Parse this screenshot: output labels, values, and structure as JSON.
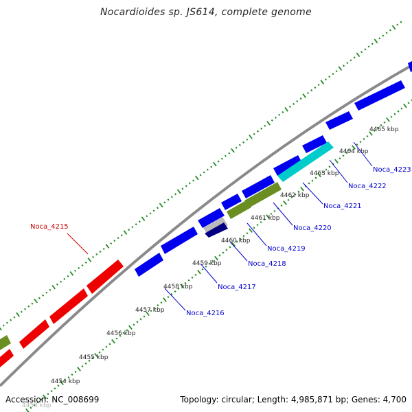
{
  "title": "Nocardioides sp. JS614, complete genome",
  "footer": {
    "accession": "Accession: NC_008699",
    "topology": "Topology: circular; Length: 4,985,871 bp; Genes: 4,700"
  },
  "colors": {
    "backbone": "#8a8a8a",
    "tick": "#228b22",
    "forward_gene": "#0000ee",
    "reverse_gene": "#ee0000",
    "olive_gene": "#6b8e23",
    "cyan_gene": "#00cccc",
    "navy_gene": "#000080",
    "gray_gene": "#bbbbbb",
    "label_forward": "#0000cc",
    "label_reverse": "#cc0000"
  },
  "scale_labels": [
    "4453 kbp",
    "4454 kbp",
    "4455 kbp",
    "4456 kbp",
    "4457 kbp",
    "4458 kbp",
    "4459 kbp",
    "4460 kbp",
    "4461 kbp",
    "4462 kbp",
    "4463 kbp",
    "4464 kbp",
    "4465 kbp"
  ],
  "gene_labels": [
    {
      "text": "Noca_4215",
      "strand": "reverse"
    },
    {
      "text": "Noca_4216",
      "strand": "forward"
    },
    {
      "text": "Noca_4217",
      "strand": "forward"
    },
    {
      "text": "Noca_4218",
      "strand": "forward"
    },
    {
      "text": "Noca_4219",
      "strand": "forward"
    },
    {
      "text": "Noca_4220",
      "strand": "forward"
    },
    {
      "text": "Noca_4221",
      "strand": "forward"
    },
    {
      "text": "Noca_4222",
      "strand": "forward"
    },
    {
      "text": "Noca_4223",
      "strand": "forward"
    }
  ]
}
